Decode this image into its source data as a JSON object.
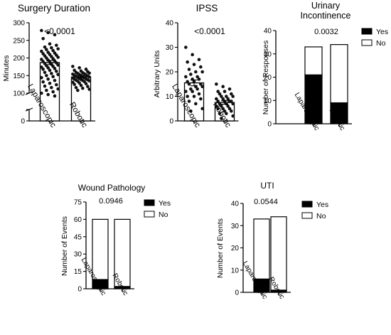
{
  "chart_data": [
    {
      "id": "surgery",
      "type": "bar",
      "title": "Surgery Duration",
      "ylabel": "Minutes",
      "pvalue": "<0.0001",
      "categories": [
        "Laparoscopic",
        "Robotic"
      ],
      "values": [
        187,
        146
      ],
      "error": [
        [
          181,
          193
        ],
        [
          143,
          149
        ]
      ],
      "y_axis_break": [
        0,
        90
      ],
      "yticks_upper": [
        "100",
        "150",
        "200",
        "250",
        "300"
      ],
      "yticks_lower": [
        "0"
      ],
      "ylim": [
        90,
        300
      ],
      "points": [
        [
          278,
          272,
          266,
          255,
          240,
          236,
          231,
          229,
          226,
          224,
          221,
          219,
          216,
          214,
          212,
          210,
          208,
          206,
          204,
          202,
          200,
          198,
          196,
          194,
          192,
          190,
          188,
          186,
          184,
          182,
          180,
          178,
          176,
          174,
          172,
          170,
          168,
          165,
          162,
          159,
          156,
          153,
          150,
          147,
          144,
          140,
          136,
          132,
          128,
          124,
          120,
          116,
          112,
          108,
          104,
          100,
          96,
          92
        ],
        [
          176,
          172,
          168,
          165,
          163,
          161,
          159,
          158,
          157,
          156,
          155,
          154,
          153,
          152,
          151,
          150,
          149,
          148,
          147,
          146,
          145,
          144,
          143,
          142,
          141,
          140,
          139,
          138,
          137,
          136,
          135,
          134,
          133,
          131,
          129,
          127,
          125,
          122,
          119,
          116,
          114,
          111,
          108
        ]
      ]
    },
    {
      "id": "ipss",
      "type": "bar",
      "title": "IPSS",
      "ylabel": "Arbitrary Units",
      "pvalue": "<0.0001",
      "categories": [
        "Laparoscopic",
        "Robotic"
      ],
      "values": [
        15.5,
        7.5
      ],
      "error": [
        [
          14.3,
          16.7
        ],
        [
          6.8,
          8.2
        ]
      ],
      "ylim": [
        0,
        40
      ],
      "yticks": [
        "0",
        "10",
        "20",
        "30",
        "40"
      ],
      "points": [
        [
          30,
          27,
          25,
          24,
          23,
          22,
          21,
          20,
          20,
          19,
          18,
          18,
          17,
          17,
          16,
          16,
          15,
          15,
          14,
          14,
          13,
          13,
          12,
          12,
          11,
          10,
          10,
          9,
          8,
          7,
          5,
          4
        ],
        [
          15,
          14,
          13,
          12,
          12,
          11,
          11,
          10,
          10,
          10,
          9,
          9,
          9,
          8,
          8,
          8,
          8,
          7,
          7,
          7,
          6,
          6,
          6,
          5,
          5,
          5,
          4,
          4,
          3,
          3,
          2,
          1
        ]
      ]
    },
    {
      "id": "urinary",
      "type": "bar",
      "stacked": true,
      "title": [
        "Urinary",
        "Incontinence"
      ],
      "ylabel": "Number of Responses",
      "pvalue": "0.0032",
      "categories": [
        "Laparoscopic",
        "Robotic"
      ],
      "series": [
        {
          "name": "Yes",
          "values": [
            21,
            9
          ],
          "color": "#000000"
        },
        {
          "name": "No",
          "values": [
            12,
            25
          ],
          "color": "#ffffff"
        }
      ],
      "ylim": [
        0,
        40
      ],
      "yticks": [
        "0",
        "10",
        "20",
        "30",
        "40"
      ],
      "legend": "top-right"
    },
    {
      "id": "wound",
      "type": "bar",
      "stacked": true,
      "title": "Wound Pathology",
      "ylabel": "Number of Events",
      "pvalue": "0.0946",
      "categories": [
        "Laparoscopic",
        "Robotic"
      ],
      "series": [
        {
          "name": "Yes",
          "values": [
            8,
            2
          ],
          "color": "#000000"
        },
        {
          "name": "No",
          "values": [
            52,
            58
          ],
          "color": "#ffffff"
        }
      ],
      "ylim": [
        0,
        75
      ],
      "yticks": [
        "0",
        "15",
        "30",
        "45",
        "60",
        "75"
      ],
      "legend": "top-right"
    },
    {
      "id": "uti",
      "type": "bar",
      "stacked": true,
      "title": "UTI",
      "ylabel": "Number of Events",
      "pvalue": "0.0544",
      "categories": [
        "Laparoscopic",
        "Robotic"
      ],
      "series": [
        {
          "name": "Yes",
          "values": [
            6,
            1
          ],
          "color": "#000000"
        },
        {
          "name": "No",
          "values": [
            27,
            33
          ],
          "color": "#ffffff"
        }
      ],
      "ylim": [
        0,
        40
      ],
      "yticks": [
        "0",
        "10",
        "20",
        "30",
        "40"
      ],
      "legend": "top-right"
    }
  ]
}
